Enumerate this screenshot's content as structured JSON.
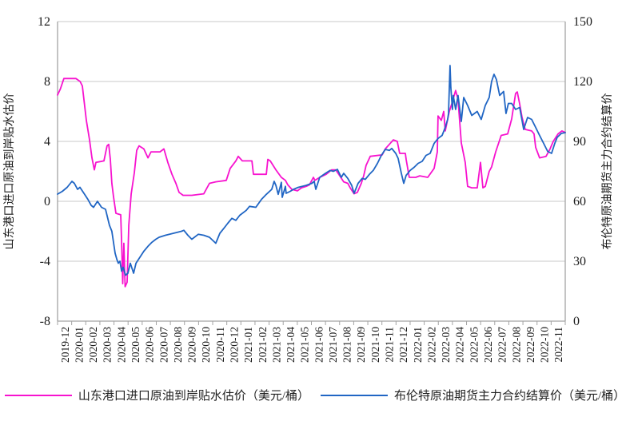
{
  "legend": [
    {
      "label": "山东港口进口原油到岸贴水估价（美元/桶）",
      "color": "#f713cf"
    },
    {
      "label": "布伦特原油期货主力合约结算价（美元/桶）",
      "color": "#2166c4"
    }
  ],
  "chart_data": {
    "type": "line",
    "grid": "horizontal",
    "legend_position": "bottom",
    "colors": {
      "grid": "#c9c9c9",
      "axis": "#a3a3a3",
      "text": "#1a1a1a"
    },
    "x_categories": [
      "2019-12",
      "2020-01",
      "2020-02",
      "2020-03",
      "2020-04",
      "2020-05",
      "2020-06",
      "2020-07",
      "2020-08",
      "2020-09",
      "2020-10",
      "2020-11",
      "2020-12",
      "2021-01",
      "2021-02",
      "2021-03",
      "2021-04",
      "2021-05",
      "2021-06",
      "2021-07",
      "2021-08",
      "2021-09",
      "2021-10",
      "2021-11",
      "2021-12",
      "2022-01",
      "2022-02",
      "2022-03",
      "2022-04",
      "2022-05",
      "2022-06",
      "2022-07",
      "2022-08",
      "2022-09",
      "2022-10",
      "2022-11"
    ],
    "y_left": {
      "title": "山东港口进口原油到岸贴水估价",
      "min": -8,
      "max": 12,
      "ticks": [
        12,
        8,
        4,
        0,
        -4,
        -8
      ]
    },
    "y_right": {
      "title": "布伦特原油期货主力合约结算价",
      "min": 0,
      "max": 150,
      "ticks": [
        150,
        120,
        90,
        60,
        30,
        0
      ]
    },
    "series": [
      {
        "name": "山东港口进口原油到岸贴水估价（美元/桶）",
        "axis": "left",
        "unit": "美元/桶",
        "color": "#f713cf",
        "points": [
          [
            0,
            7.1
          ],
          [
            0.2,
            7.5
          ],
          [
            0.45,
            8.2
          ],
          [
            1.3,
            8.2
          ],
          [
            1.6,
            8.0
          ],
          [
            1.76,
            7.7
          ],
          [
            2.04,
            5.4
          ],
          [
            2.27,
            4.1
          ],
          [
            2.44,
            2.9
          ],
          [
            2.61,
            2.1
          ],
          [
            2.72,
            2.6
          ],
          [
            3.29,
            2.7
          ],
          [
            3.51,
            3.7
          ],
          [
            3.63,
            3.8
          ],
          [
            3.74,
            2.8
          ],
          [
            3.85,
            1.2
          ],
          [
            3.97,
            0.3
          ],
          [
            4.14,
            -0.8
          ],
          [
            4.48,
            -0.9
          ],
          [
            4.54,
            -2.7
          ],
          [
            4.62,
            -5.5
          ],
          [
            4.7,
            -2.8
          ],
          [
            4.79,
            -5.7
          ],
          [
            4.93,
            -5.4
          ],
          [
            5.05,
            -1.6
          ],
          [
            5.22,
            0.5
          ],
          [
            5.44,
            1.9
          ],
          [
            5.61,
            3.4
          ],
          [
            5.78,
            3.7
          ],
          [
            6.12,
            3.5
          ],
          [
            6.41,
            2.9
          ],
          [
            6.63,
            3.3
          ],
          [
            7.26,
            3.3
          ],
          [
            7.54,
            3.5
          ],
          [
            7.82,
            2.6
          ],
          [
            8.11,
            1.8
          ],
          [
            8.39,
            1.2
          ],
          [
            8.62,
            0.6
          ],
          [
            8.9,
            0.4
          ],
          [
            9.52,
            0.4
          ],
          [
            10.37,
            0.5
          ],
          [
            10.77,
            1.2
          ],
          [
            11.22,
            1.3
          ],
          [
            11.96,
            1.4
          ],
          [
            12.24,
            2.2
          ],
          [
            12.64,
            2.7
          ],
          [
            12.81,
            3.0
          ],
          [
            13.1,
            2.7
          ],
          [
            13.78,
            2.7
          ],
          [
            13.89,
            1.8
          ],
          [
            14.8,
            1.8
          ],
          [
            14.91,
            2.8
          ],
          [
            15.08,
            2.7
          ],
          [
            15.48,
            2.1
          ],
          [
            15.87,
            1.6
          ],
          [
            16.16,
            1.4
          ],
          [
            16.33,
            1.1
          ],
          [
            16.61,
            0.8
          ],
          [
            17.01,
            0.7
          ],
          [
            17.29,
            0.9
          ],
          [
            17.63,
            1.0
          ],
          [
            17.86,
            1.1
          ],
          [
            18.14,
            1.6
          ],
          [
            18.25,
            1.4
          ],
          [
            18.59,
            1.6
          ],
          [
            19.05,
            1.8
          ],
          [
            19.44,
            2.1
          ],
          [
            19.73,
            2.1
          ],
          [
            20.01,
            1.7
          ],
          [
            20.29,
            1.3
          ],
          [
            20.58,
            1.2
          ],
          [
            20.75,
            0.9
          ],
          [
            21.03,
            0.5
          ],
          [
            21.26,
            0.6
          ],
          [
            21.54,
            1.2
          ],
          [
            21.71,
            1.7
          ],
          [
            21.88,
            2.4
          ],
          [
            22.17,
            3.0
          ],
          [
            23.02,
            3.1
          ],
          [
            23.24,
            3.5
          ],
          [
            23.53,
            3.8
          ],
          [
            23.81,
            4.1
          ],
          [
            24.09,
            4.0
          ],
          [
            24.26,
            3.2
          ],
          [
            24.66,
            3.2
          ],
          [
            24.72,
            2.8
          ],
          [
            24.94,
            1.6
          ],
          [
            25.4,
            1.6
          ],
          [
            25.68,
            1.7
          ],
          [
            26.25,
            1.6
          ],
          [
            26.7,
            2.2
          ],
          [
            26.93,
            3.3
          ],
          [
            26.98,
            5.7
          ],
          [
            27.21,
            5.4
          ],
          [
            27.38,
            6.0
          ],
          [
            27.49,
            4.7
          ],
          [
            27.78,
            6.0
          ],
          [
            27.95,
            6.5
          ],
          [
            28.23,
            7.4
          ],
          [
            28.4,
            6.8
          ],
          [
            28.63,
            3.9
          ],
          [
            28.91,
            2.6
          ],
          [
            29.08,
            1.0
          ],
          [
            29.37,
            0.9
          ],
          [
            29.76,
            0.9
          ],
          [
            29.99,
            2.6
          ],
          [
            30.16,
            0.9
          ],
          [
            30.33,
            1.0
          ],
          [
            30.61,
            2.0
          ],
          [
            30.78,
            2.3
          ],
          [
            31.07,
            3.3
          ],
          [
            31.46,
            4.4
          ],
          [
            31.92,
            4.5
          ],
          [
            32.2,
            5.5
          ],
          [
            32.48,
            7.2
          ],
          [
            32.6,
            7.3
          ],
          [
            32.77,
            6.5
          ],
          [
            32.94,
            5.6
          ],
          [
            33.16,
            4.8
          ],
          [
            33.62,
            4.7
          ],
          [
            33.79,
            4.5
          ],
          [
            33.9,
            3.6
          ],
          [
            34.18,
            2.9
          ],
          [
            34.64,
            3.0
          ],
          [
            34.92,
            3.5
          ],
          [
            35.15,
            4.0
          ],
          [
            35.49,
            4.5
          ],
          [
            35.77,
            4.7
          ],
          [
            36,
            4.6
          ]
        ]
      },
      {
        "name": "布伦特原油期货主力合约结算价（美元/桶）",
        "axis": "right",
        "unit": "美元/桶",
        "color": "#2166c4",
        "points": [
          [
            0,
            63.6
          ],
          [
            0.34,
            65
          ],
          [
            0.68,
            67
          ],
          [
            1.02,
            70
          ],
          [
            1.19,
            69
          ],
          [
            1.42,
            66
          ],
          [
            1.59,
            67
          ],
          [
            1.87,
            64
          ],
          [
            2.15,
            61
          ],
          [
            2.38,
            58
          ],
          [
            2.55,
            57
          ],
          [
            2.83,
            60
          ],
          [
            3.12,
            57
          ],
          [
            3.4,
            56
          ],
          [
            3.68,
            48
          ],
          [
            3.85,
            45
          ],
          [
            4.08,
            34
          ],
          [
            4.2,
            31
          ],
          [
            4.31,
            29
          ],
          [
            4.42,
            30
          ],
          [
            4.54,
            25
          ],
          [
            4.65,
            27
          ],
          [
            4.82,
            23
          ],
          [
            4.99,
            24
          ],
          [
            5.16,
            29
          ],
          [
            5.39,
            24
          ],
          [
            5.56,
            29
          ],
          [
            5.84,
            32
          ],
          [
            6.12,
            35
          ],
          [
            6.41,
            37.5
          ],
          [
            6.69,
            39.5
          ],
          [
            6.97,
            41
          ],
          [
            7.2,
            42
          ],
          [
            7.65,
            43
          ],
          [
            8.22,
            44
          ],
          [
            8.79,
            45
          ],
          [
            8.96,
            45.5
          ],
          [
            9.24,
            43
          ],
          [
            9.52,
            41
          ],
          [
            9.98,
            43.5
          ],
          [
            10.37,
            43
          ],
          [
            10.77,
            42
          ],
          [
            11.22,
            39
          ],
          [
            11.51,
            44
          ],
          [
            11.79,
            46.5
          ],
          [
            12.07,
            49
          ],
          [
            12.36,
            51.5
          ],
          [
            12.64,
            50.5
          ],
          [
            12.92,
            53
          ],
          [
            13.38,
            55.5
          ],
          [
            13.61,
            57.5
          ],
          [
            14.06,
            57
          ],
          [
            14.46,
            61
          ],
          [
            14.8,
            63.5
          ],
          [
            15.19,
            66
          ],
          [
            15.36,
            70
          ],
          [
            15.48,
            68
          ],
          [
            15.65,
            63.5
          ],
          [
            15.87,
            69.5
          ],
          [
            15.93,
            62
          ],
          [
            16.16,
            67.5
          ],
          [
            16.21,
            64
          ],
          [
            16.5,
            65
          ],
          [
            16.73,
            66
          ],
          [
            17.07,
            67
          ],
          [
            17.63,
            68
          ],
          [
            18.03,
            69
          ],
          [
            18.2,
            70
          ],
          [
            18.31,
            66
          ],
          [
            18.59,
            72
          ],
          [
            18.99,
            74
          ],
          [
            19.33,
            75.5
          ],
          [
            19.56,
            75
          ],
          [
            19.84,
            76
          ],
          [
            20.12,
            72
          ],
          [
            20.29,
            74
          ],
          [
            20.58,
            71.5
          ],
          [
            20.86,
            68
          ],
          [
            21.03,
            64
          ],
          [
            21.31,
            69
          ],
          [
            21.6,
            71.5
          ],
          [
            21.82,
            71
          ],
          [
            22.11,
            73.5
          ],
          [
            22.39,
            75.5
          ],
          [
            22.68,
            79
          ],
          [
            22.96,
            83
          ],
          [
            23.24,
            86
          ],
          [
            23.53,
            85.5
          ],
          [
            23.7,
            86.5
          ],
          [
            23.98,
            84
          ],
          [
            24.15,
            81.5
          ],
          [
            24.38,
            74
          ],
          [
            24.55,
            69
          ],
          [
            24.72,
            73
          ],
          [
            25,
            75.5
          ],
          [
            25.28,
            77
          ],
          [
            25.57,
            79
          ],
          [
            25.85,
            80
          ],
          [
            26.13,
            83
          ],
          [
            26.42,
            84
          ],
          [
            26.7,
            89
          ],
          [
            26.98,
            91.5
          ],
          [
            27.27,
            93
          ],
          [
            27.49,
            97
          ],
          [
            27.66,
            101
          ],
          [
            27.72,
            104
          ],
          [
            27.83,
            128
          ],
          [
            27.89,
            117
          ],
          [
            28.0,
            106
          ],
          [
            28.06,
            113
          ],
          [
            28.23,
            106
          ],
          [
            28.4,
            113
          ],
          [
            28.63,
            100
          ],
          [
            28.8,
            112
          ],
          [
            29.08,
            108
          ],
          [
            29.37,
            103
          ],
          [
            29.76,
            105
          ],
          [
            30.04,
            101
          ],
          [
            30.33,
            108
          ],
          [
            30.61,
            112
          ],
          [
            30.78,
            120
          ],
          [
            30.95,
            123.6
          ],
          [
            31.12,
            121
          ],
          [
            31.35,
            113
          ],
          [
            31.63,
            115
          ],
          [
            31.8,
            104
          ],
          [
            31.97,
            109
          ],
          [
            32.2,
            109
          ],
          [
            32.48,
            106
          ],
          [
            32.77,
            107
          ],
          [
            33.05,
            96
          ],
          [
            33.33,
            102
          ],
          [
            33.62,
            101
          ],
          [
            33.9,
            97
          ],
          [
            34.18,
            93
          ],
          [
            34.47,
            89
          ],
          [
            34.75,
            85
          ],
          [
            35.03,
            84
          ],
          [
            35.26,
            89
          ],
          [
            35.43,
            92
          ],
          [
            35.72,
            94
          ],
          [
            36,
            94.4
          ]
        ]
      }
    ]
  }
}
